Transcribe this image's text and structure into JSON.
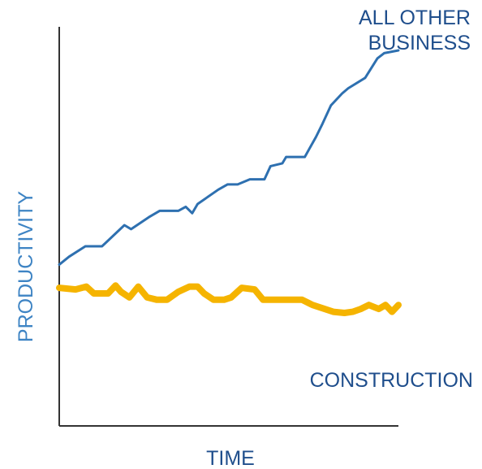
{
  "chart_data": {
    "type": "line",
    "title": "",
    "xlabel": "TIME",
    "ylabel": "PRODUCTIVITY",
    "x_ticks": false,
    "y_ticks": false,
    "grid": false,
    "colors": {
      "axis": "#333333",
      "label": "#1f4e8c",
      "ylabel": "#3e84c4",
      "series_all_other": "#2e70b0",
      "series_construction": "#f5b400"
    },
    "series": [
      {
        "name": "ALL OTHER BUSINESS",
        "name_lines": [
          "ALL OTHER",
          "BUSINESS"
        ],
        "x": [
          0,
          2.9,
          7.7,
          12.6,
          19.2,
          21.2,
          26.4,
          29.6,
          35.1,
          37.3,
          39.2,
          40.8,
          46.9,
          49.6,
          52.6,
          56.2,
          60.5,
          62.3,
          65.8,
          66.9,
          72.4,
          75.7,
          77.6,
          80.1,
          83.4,
          85.2,
          90.2,
          93.8,
          95.8,
          100
        ],
        "y": [
          40.4,
          42.4,
          45.0,
          45.0,
          50.3,
          49.3,
          52.3,
          53.9,
          53.9,
          54.9,
          53.3,
          55.6,
          59.2,
          60.5,
          60.5,
          61.8,
          61.8,
          65.1,
          65.8,
          67.4,
          67.4,
          72.4,
          75.7,
          80.3,
          83.3,
          84.6,
          87.2,
          92.1,
          93.4,
          94.1
        ]
      },
      {
        "name": "CONSTRUCTION",
        "x": [
          0,
          4.8,
          8.0,
          10.2,
          14.4,
          16.6,
          18.2,
          20.7,
          23.3,
          25.9,
          28.8,
          31.8,
          35.1,
          38.4,
          40.8,
          42.7,
          45.5,
          48.6,
          50.7,
          53.8,
          57.6,
          60.1,
          62.5,
          65.4,
          71.6,
          74.7,
          80.8,
          84.1,
          86.5,
          88.9,
          91.3,
          94.2,
          96.2,
          98.1,
          100
        ],
        "y": [
          34.6,
          34.2,
          34.9,
          33.2,
          33.2,
          35.2,
          33.6,
          32.2,
          34.9,
          32.2,
          31.6,
          31.6,
          33.6,
          34.9,
          34.9,
          33.2,
          31.6,
          31.6,
          32.2,
          34.6,
          34.2,
          31.6,
          31.6,
          31.6,
          31.6,
          30.3,
          28.6,
          28.3,
          28.6,
          29.3,
          30.3,
          29.3,
          30.3,
          28.6,
          30.3
        ]
      }
    ]
  }
}
